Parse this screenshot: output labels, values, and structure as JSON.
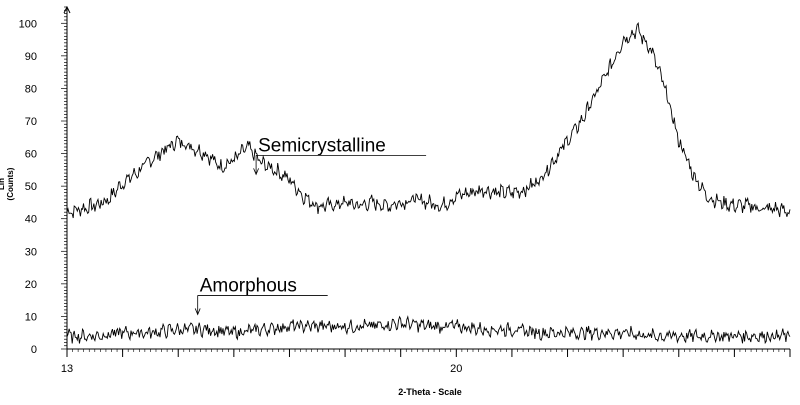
{
  "chart_data": {
    "type": "line",
    "xlabel": "2-Theta - Scale",
    "ylabel": "Lin (Counts)",
    "xlim": [
      13,
      26
    ],
    "ylim": [
      0,
      105
    ],
    "x_ticks": [
      13,
      20
    ],
    "y_ticks": [
      0,
      10,
      20,
      30,
      40,
      50,
      60,
      70,
      80,
      90,
      100
    ],
    "grid": false,
    "annotations": [
      {
        "text": "Semicrystalline",
        "x": 16.4,
        "y": 53
      },
      {
        "text": "Amorphous",
        "x": 15.35,
        "y": 10
      }
    ],
    "series": [
      {
        "name": "Semicrystalline",
        "x": [
          13.0,
          13.25,
          13.5,
          13.75,
          14.0,
          14.25,
          14.5,
          14.75,
          15.0,
          15.25,
          15.5,
          15.75,
          16.0,
          16.25,
          16.5,
          16.75,
          17.0,
          17.25,
          17.5,
          17.75,
          18.0,
          18.25,
          18.5,
          18.75,
          19.0,
          19.25,
          19.5,
          19.75,
          20.0,
          20.25,
          20.5,
          20.75,
          21.0,
          21.25,
          21.5,
          21.75,
          22.0,
          22.25,
          22.5,
          22.75,
          23.0,
          23.25,
          23.5,
          23.75,
          24.0,
          24.25,
          24.5,
          24.75,
          25.0,
          25.25,
          25.5,
          25.75,
          26.0
        ],
        "y": [
          42,
          43,
          44,
          46,
          51,
          54,
          58,
          61,
          64,
          62,
          60,
          56,
          58,
          62,
          57,
          55,
          52,
          47,
          44,
          44,
          45,
          44,
          45,
          44,
          45,
          46,
          45,
          44,
          47,
          48,
          49,
          48,
          48,
          49,
          52,
          58,
          64,
          70,
          78,
          86,
          95,
          98,
          92,
          80,
          64,
          54,
          47,
          45,
          44,
          44,
          43,
          43,
          42
        ]
      },
      {
        "name": "Amorphous",
        "x": [
          13.0,
          13.5,
          14.0,
          14.5,
          15.0,
          15.5,
          16.0,
          16.5,
          17.0,
          17.5,
          18.0,
          18.5,
          19.0,
          19.5,
          20.0,
          20.5,
          21.0,
          21.5,
          22.0,
          22.5,
          23.0,
          23.5,
          24.0,
          24.5,
          25.0,
          25.5,
          26.0
        ],
        "y": [
          4,
          4,
          5,
          5,
          6,
          6,
          5,
          6,
          7,
          7,
          7,
          7,
          8,
          7,
          7,
          6,
          6,
          5,
          5,
          5,
          5,
          4,
          4,
          4,
          4,
          4,
          4
        ]
      }
    ]
  }
}
